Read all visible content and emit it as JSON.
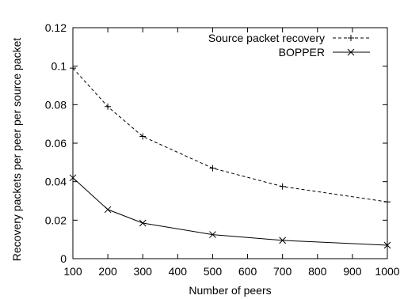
{
  "chart_data": {
    "type": "line",
    "xlabel": "Number of peers",
    "ylabel": "Recovery packets per peer per source packet",
    "xlim": [
      100,
      1000
    ],
    "ylim": [
      0,
      0.12
    ],
    "x_ticks": [
      "100",
      "200",
      "300",
      "400",
      "500",
      "600",
      "700",
      "800",
      "900",
      "1000"
    ],
    "y_ticks": [
      "0",
      "0.02",
      "0.04",
      "0.06",
      "0.08",
      "0.1",
      "0.12"
    ],
    "grid": false,
    "legend_position": "top-right",
    "series": [
      {
        "name": "Source packet recovery",
        "line_style": "dashed",
        "marker": "plus",
        "color": "#000000",
        "x": [
          100,
          200,
          300,
          500,
          700,
          1000
        ],
        "y": [
          0.099,
          0.079,
          0.0635,
          0.047,
          0.0375,
          0.0295
        ]
      },
      {
        "name": "BOPPER",
        "line_style": "solid",
        "marker": "cross",
        "color": "#000000",
        "x": [
          100,
          200,
          300,
          500,
          700,
          1000
        ],
        "y": [
          0.042,
          0.0255,
          0.0185,
          0.0125,
          0.0095,
          0.007
        ]
      }
    ]
  }
}
